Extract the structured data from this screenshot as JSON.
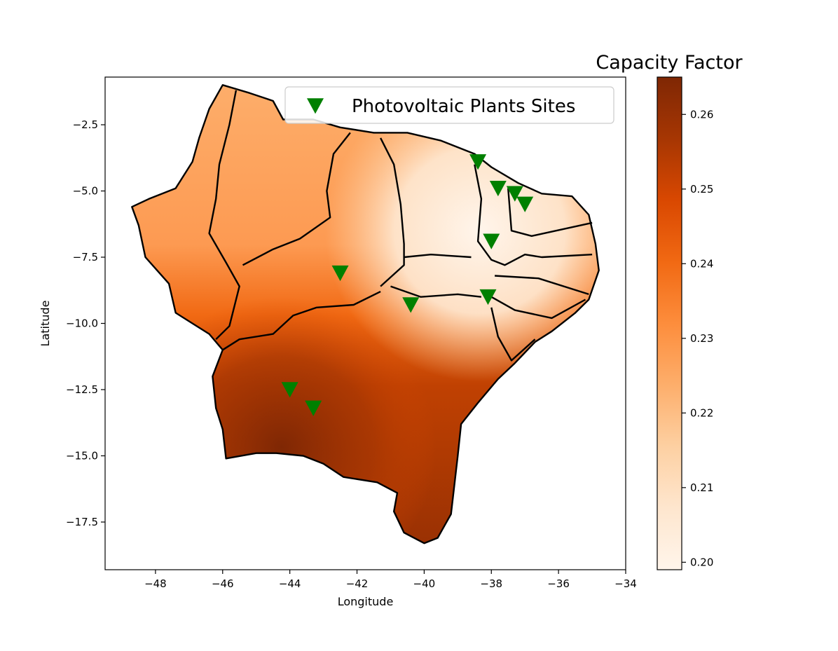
{
  "chart_data": {
    "type": "heatmap",
    "title": "",
    "xlabel": "Longitude",
    "ylabel": "Latitude",
    "xlim": [
      -49.5,
      -34
    ],
    "ylim": [
      -19.3,
      -0.7
    ],
    "xticks": [
      -48,
      -46,
      -44,
      -42,
      -40,
      -38,
      -36,
      -34
    ],
    "yticks": [
      -2.5,
      -5.0,
      -7.5,
      -10.0,
      -12.5,
      -15.0,
      -17.5
    ],
    "xtick_labels": [
      "−48",
      "−46",
      "−44",
      "−42",
      "−40",
      "−38",
      "−36",
      "−34"
    ],
    "ytick_labels": [
      "−2.5",
      "−5.0",
      "−7.5",
      "−10.0",
      "−12.5",
      "−15.0",
      "−17.5"
    ],
    "colorbar": {
      "title": "Capacity Factor",
      "range": [
        0.199,
        0.265
      ],
      "ticks": [
        0.2,
        0.21,
        0.22,
        0.23,
        0.24,
        0.25,
        0.26
      ],
      "tick_labels": [
        "0.20",
        "0.21",
        "0.22",
        "0.23",
        "0.24",
        "0.25",
        "0.26"
      ],
      "colormap": "Oranges",
      "stops": [
        "#fff5eb",
        "#fee6ce",
        "#fdd0a2",
        "#fdae6b",
        "#fd8d3c",
        "#f16913",
        "#d94801",
        "#a63603",
        "#7f2704"
      ]
    },
    "legend": {
      "placement": "top-right",
      "entries": [
        {
          "label": "Photovoltaic Plants Sites",
          "marker": "triangle-down",
          "color": "#008000"
        }
      ]
    },
    "series": [
      {
        "name": "Photovoltaic Plants Sites",
        "type": "scatter",
        "points": [
          {
            "x": -38.4,
            "y": -3.9
          },
          {
            "x": -37.8,
            "y": -4.9
          },
          {
            "x": -37.3,
            "y": -5.1
          },
          {
            "x": -37.0,
            "y": -5.5
          },
          {
            "x": -38.0,
            "y": -6.9
          },
          {
            "x": -42.5,
            "y": -8.1
          },
          {
            "x": -40.4,
            "y": -9.3
          },
          {
            "x": -38.1,
            "y": -9.0
          },
          {
            "x": -44.0,
            "y": -12.5
          },
          {
            "x": -43.3,
            "y": -13.2
          }
        ]
      }
    ],
    "region_outline": [
      [
        -46.0,
        -1.0
      ],
      [
        -45.2,
        -1.3
      ],
      [
        -44.5,
        -1.6
      ],
      [
        -44.2,
        -2.3
      ],
      [
        -43.3,
        -2.3
      ],
      [
        -42.5,
        -2.6
      ],
      [
        -41.5,
        -2.8
      ],
      [
        -40.5,
        -2.8
      ],
      [
        -39.5,
        -3.1
      ],
      [
        -38.5,
        -3.6
      ],
      [
        -38.0,
        -4.1
      ],
      [
        -37.2,
        -4.7
      ],
      [
        -36.5,
        -5.1
      ],
      [
        -35.6,
        -5.2
      ],
      [
        -35.1,
        -5.9
      ],
      [
        -34.9,
        -7.0
      ],
      [
        -34.8,
        -8.0
      ],
      [
        -35.1,
        -9.1
      ],
      [
        -35.5,
        -9.6
      ],
      [
        -36.2,
        -10.3
      ],
      [
        -36.7,
        -10.7
      ],
      [
        -37.3,
        -11.5
      ],
      [
        -37.8,
        -12.1
      ],
      [
        -38.4,
        -13.0
      ],
      [
        -38.9,
        -13.8
      ],
      [
        -39.0,
        -15.0
      ],
      [
        -39.1,
        -16.1
      ],
      [
        -39.2,
        -17.2
      ],
      [
        -39.6,
        -18.1
      ],
      [
        -40.0,
        -18.3
      ],
      [
        -40.6,
        -17.9
      ],
      [
        -40.9,
        -17.1
      ],
      [
        -40.8,
        -16.4
      ],
      [
        -41.4,
        -16.0
      ],
      [
        -42.4,
        -15.8
      ],
      [
        -43.0,
        -15.3
      ],
      [
        -43.6,
        -15.0
      ],
      [
        -44.4,
        -14.9
      ],
      [
        -45.0,
        -14.9
      ],
      [
        -45.9,
        -15.1
      ],
      [
        -46.0,
        -14.0
      ],
      [
        -46.2,
        -13.2
      ],
      [
        -46.3,
        -12.0
      ],
      [
        -46.0,
        -11.0
      ],
      [
        -46.4,
        -10.4
      ],
      [
        -46.9,
        -10.0
      ],
      [
        -47.4,
        -9.6
      ],
      [
        -47.6,
        -8.5
      ],
      [
        -48.3,
        -7.5
      ],
      [
        -48.5,
        -6.3
      ],
      [
        -48.7,
        -5.6
      ],
      [
        -48.2,
        -5.3
      ],
      [
        -47.4,
        -4.9
      ],
      [
        -46.9,
        -3.9
      ],
      [
        -46.7,
        -3.0
      ],
      [
        -46.4,
        -1.9
      ],
      [
        -46.0,
        -1.0
      ]
    ],
    "state_borders": [
      [
        [
          -45.6,
          -1.2
        ],
        [
          -45.8,
          -2.5
        ],
        [
          -46.1,
          -4.0
        ],
        [
          -46.2,
          -5.3
        ],
        [
          -46.4,
          -6.6
        ],
        [
          -45.9,
          -7.7
        ],
        [
          -45.5,
          -8.6
        ],
        [
          -45.8,
          -10.1
        ],
        [
          -46.2,
          -10.6
        ]
      ],
      [
        [
          -42.2,
          -2.8
        ],
        [
          -42.7,
          -3.6
        ],
        [
          -42.9,
          -5.0
        ],
        [
          -42.8,
          -6.0
        ],
        [
          -43.7,
          -6.8
        ],
        [
          -44.5,
          -7.2
        ],
        [
          -45.4,
          -7.8
        ]
      ],
      [
        [
          -41.3,
          -3.0
        ],
        [
          -40.9,
          -4.0
        ],
        [
          -40.7,
          -5.5
        ],
        [
          -40.6,
          -7.0
        ],
        [
          -40.6,
          -7.8
        ],
        [
          -41.3,
          -8.6
        ]
      ],
      [
        [
          -38.5,
          -4.0
        ],
        [
          -38.3,
          -5.3
        ],
        [
          -38.4,
          -6.9
        ],
        [
          -38.0,
          -7.6
        ],
        [
          -37.6,
          -7.8
        ],
        [
          -37.0,
          -7.4
        ],
        [
          -36.5,
          -7.5
        ],
        [
          -35.0,
          -7.4
        ]
      ],
      [
        [
          -37.5,
          -4.9
        ],
        [
          -37.4,
          -6.5
        ],
        [
          -36.8,
          -6.7
        ],
        [
          -35.0,
          -6.2
        ]
      ],
      [
        [
          -38.6,
          -7.5
        ],
        [
          -39.8,
          -7.4
        ],
        [
          -40.6,
          -7.5
        ]
      ],
      [
        [
          -37.9,
          -8.2
        ],
        [
          -36.6,
          -8.3
        ],
        [
          -35.1,
          -8.9
        ]
      ],
      [
        [
          -38.0,
          -9.0
        ],
        [
          -37.3,
          -9.5
        ],
        [
          -36.2,
          -9.8
        ],
        [
          -35.2,
          -9.1
        ]
      ],
      [
        [
          -38.0,
          -9.4
        ],
        [
          -37.8,
          -10.5
        ],
        [
          -37.4,
          -11.4
        ],
        [
          -36.7,
          -10.6
        ]
      ],
      [
        [
          -41.0,
          -8.6
        ],
        [
          -40.1,
          -9.0
        ],
        [
          -39.0,
          -8.9
        ],
        [
          -38.3,
          -9.0
        ]
      ],
      [
        [
          -41.3,
          -8.8
        ],
        [
          -42.1,
          -9.3
        ],
        [
          -43.2,
          -9.4
        ],
        [
          -43.9,
          -9.7
        ],
        [
          -44.5,
          -10.4
        ],
        [
          -45.5,
          -10.6
        ],
        [
          -46.0,
          -11.0
        ]
      ]
    ]
  }
}
